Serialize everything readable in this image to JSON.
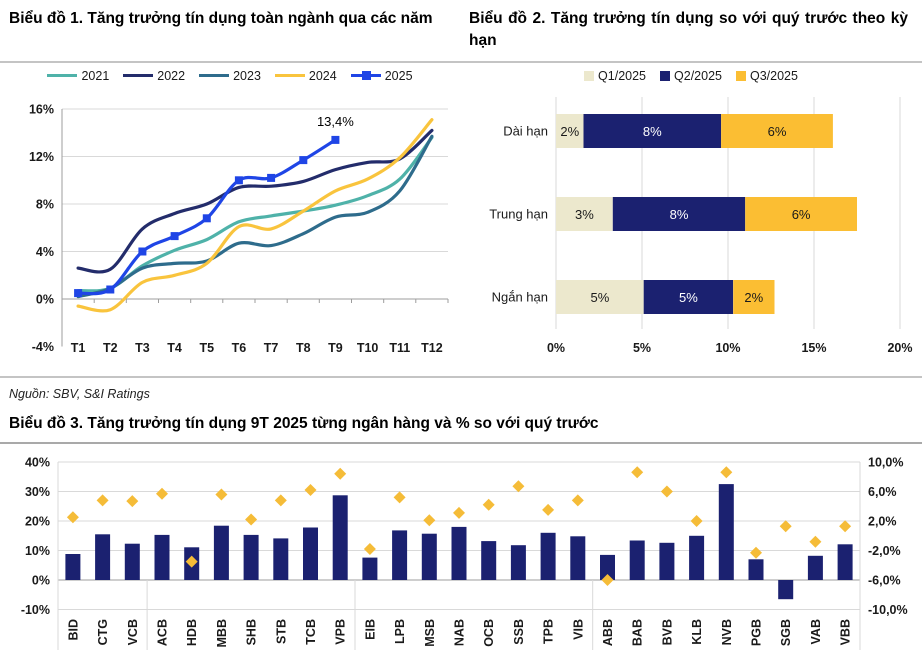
{
  "source_note": "Nguồn: SBV, S&I Ratings",
  "colors": {
    "accent_navy": "#1b2170",
    "accent_gold": "#f5bc38",
    "grid": "#d9d9d9",
    "axis": "#9d9d9d",
    "series_2021": "#4fb2a9",
    "series_2022": "#232c6b",
    "series_2023": "#2e6c8c",
    "series_2024": "#f9c43d",
    "series_2025": "#1f45e6",
    "q1_beige": "#ece8cd",
    "q2_navy": "#1b2170",
    "q3_gold": "#fbbe33",
    "label_dark": "#1a1a1a",
    "label_light": "#ffffff"
  },
  "chart_data": [
    {
      "id": "chart1",
      "type": "line",
      "title": "Biểu đồ 1. Tăng trưởng tín dụng toàn ngành qua các năm",
      "x": [
        "T1",
        "T2",
        "T3",
        "T4",
        "T5",
        "T6",
        "T7",
        "T8",
        "T9",
        "T10",
        "T11",
        "T12"
      ],
      "ylim": [
        -4,
        16
      ],
      "yticks": [
        {
          "v": 16,
          "label": "16%"
        },
        {
          "v": 12,
          "label": "12%"
        },
        {
          "v": 8,
          "label": "8%"
        },
        {
          "v": 4,
          "label": "4%"
        },
        {
          "v": 0,
          "label": "0%"
        },
        {
          "v": -4,
          "label": "-4%"
        }
      ],
      "grid": true,
      "legend_position": "top",
      "series": [
        {
          "name": "2021",
          "color_key": "series_2021",
          "marker": "none",
          "values": [
            0.7,
            0.9,
            2.8,
            4.1,
            5.0,
            6.5,
            7.0,
            7.4,
            7.9,
            8.7,
            10.1,
            13.6
          ]
        },
        {
          "name": "2022",
          "color_key": "series_2022",
          "marker": "none",
          "values": [
            2.6,
            2.5,
            5.9,
            7.2,
            8.0,
            9.4,
            9.5,
            9.9,
            10.9,
            11.5,
            11.8,
            14.2
          ]
        },
        {
          "name": "2023",
          "color_key": "series_2023",
          "marker": "none",
          "values": [
            0.2,
            0.9,
            2.6,
            3.0,
            3.2,
            4.7,
            4.5,
            5.5,
            6.9,
            7.3,
            9.1,
            13.7
          ]
        },
        {
          "name": "2024",
          "color_key": "series_2024",
          "marker": "none",
          "values": [
            -0.6,
            -0.9,
            1.4,
            2.0,
            3.0,
            6.1,
            5.9,
            7.4,
            9.1,
            10.1,
            11.9,
            15.1
          ]
        },
        {
          "name": "2025",
          "color_key": "series_2025",
          "marker": "square",
          "values": [
            0.5,
            0.8,
            4.0,
            5.3,
            6.8,
            10.0,
            10.2,
            11.7,
            13.4
          ]
        }
      ],
      "annotation": {
        "text": "13,4%",
        "series": "2025",
        "point_index": 8
      }
    },
    {
      "id": "chart2",
      "type": "stacked-bar-horizontal",
      "title": "Biểu đồ 2. Tăng trưởng tín dụng so với quý trước theo kỳ hạn",
      "legend": [
        {
          "name": "Q1/2025",
          "color_key": "q1_beige",
          "text_color_key": "label_dark"
        },
        {
          "name": "Q2/2025",
          "color_key": "q2_navy",
          "text_color_key": "label_light"
        },
        {
          "name": "Q3/2025",
          "color_key": "q3_gold",
          "text_color_key": "label_dark"
        }
      ],
      "xlim": [
        0,
        20
      ],
      "xticks": [
        {
          "v": 0,
          "label": "0%"
        },
        {
          "v": 5,
          "label": "5%"
        },
        {
          "v": 10,
          "label": "10%"
        },
        {
          "v": 15,
          "label": "15%"
        },
        {
          "v": 20,
          "label": "20%"
        }
      ],
      "rows": [
        {
          "category": "Dài hạn",
          "segments": [
            {
              "value": 1.6,
              "label": "2%"
            },
            {
              "value": 8.0,
              "label": "8%"
            },
            {
              "value": 6.5,
              "label": "6%"
            }
          ]
        },
        {
          "category": "Trung hạn",
          "segments": [
            {
              "value": 3.3,
              "label": "3%"
            },
            {
              "value": 7.7,
              "label": "8%"
            },
            {
              "value": 6.5,
              "label": "6%"
            }
          ]
        },
        {
          "category": "Ngắn hạn",
          "segments": [
            {
              "value": 5.1,
              "label": "5%"
            },
            {
              "value": 5.2,
              "label": "5%"
            },
            {
              "value": 2.4,
              "label": "2%"
            }
          ]
        }
      ]
    },
    {
      "id": "chart3",
      "type": "bar+scatter",
      "title": "Biểu đồ 3. Tăng trưởng tín dụng 9T 2025 từng ngân hàng và % so với quý trước",
      "categories": [
        "BID",
        "CTG",
        "VCB",
        "ACB",
        "HDB",
        "MBB",
        "SHB",
        "STB",
        "TCB",
        "VPB",
        "EIB",
        "LPB",
        "MSB",
        "NAB",
        "OCB",
        "SSB",
        "TPB",
        "VIB",
        "ABB",
        "BAB",
        "BVB",
        "KLB",
        "NVB",
        "PGB",
        "SGB",
        "VAB",
        "VBB"
      ],
      "group_dividers_after_index": [
        2,
        9,
        17
      ],
      "left_axis": {
        "lim": [
          -10,
          40
        ],
        "ticks": [
          {
            "v": 40,
            "label": "40%"
          },
          {
            "v": 30,
            "label": "30%"
          },
          {
            "v": 20,
            "label": "20%"
          },
          {
            "v": 10,
            "label": "10%"
          },
          {
            "v": 0,
            "label": "0%"
          },
          {
            "v": -10,
            "label": "-10%"
          }
        ]
      },
      "right_axis": {
        "lim": [
          -10,
          10
        ],
        "ticks": [
          {
            "v": 10,
            "label": "10,0%"
          },
          {
            "v": 6,
            "label": "6,0%"
          },
          {
            "v": 2,
            "label": "2,0%"
          },
          {
            "v": -2,
            "label": "-2,0%"
          },
          {
            "v": -6,
            "label": "-6,0%"
          },
          {
            "v": -10,
            "label": "-10,0%"
          }
        ]
      },
      "bars": {
        "axis": "left",
        "color_key": "accent_navy",
        "values": [
          8.8,
          15.5,
          12.3,
          15.3,
          11.1,
          18.4,
          15.3,
          14.1,
          17.8,
          28.7,
          7.6,
          16.8,
          15.7,
          18.0,
          13.2,
          11.8,
          16.0,
          14.8,
          8.5,
          13.4,
          12.6,
          15.0,
          32.5,
          7.0,
          -6.5,
          8.2,
          12.1
        ]
      },
      "diamonds": {
        "axis": "right",
        "color_key": "accent_gold",
        "values": [
          2.5,
          4.8,
          4.7,
          5.7,
          -3.5,
          5.6,
          2.2,
          4.8,
          6.2,
          8.4,
          -1.8,
          5.2,
          2.1,
          3.1,
          4.2,
          6.7,
          3.5,
          4.8,
          -6.0,
          8.6,
          6.0,
          2.0,
          8.6,
          -2.3,
          1.3,
          -0.8,
          1.3
        ]
      }
    }
  ]
}
